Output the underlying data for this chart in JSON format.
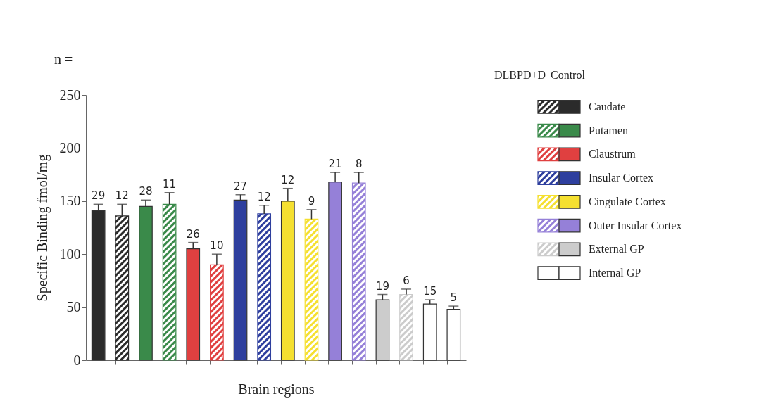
{
  "chart_data": {
    "type": "bar",
    "xlabel": "Brain regions",
    "ylabel": "Specific Binding fmol/mg",
    "categories": [
      null,
      null,
      null,
      null,
      null,
      null,
      null,
      null,
      null,
      null,
      null,
      null,
      null,
      null,
      null,
      null
    ],
    "series": [
      {
        "name": "Caudate",
        "color": "#2b2b2b",
        "values": [
          141,
          136,
          null,
          null,
          null,
          null,
          null,
          null,
          null,
          null,
          null,
          null,
          null,
          null,
          null,
          null
        ],
        "errors": [
          [
            141,
            147
          ],
          [
            136,
            147
          ],
          null,
          null,
          null,
          null,
          null,
          null,
          null,
          null,
          null,
          null,
          null,
          null,
          null,
          null
        ]
      },
      {
        "name": "Putamen",
        "color": "#3a8a4a",
        "values": [
          null,
          null,
          145,
          147,
          null,
          null,
          null,
          null,
          null,
          null,
          null,
          null,
          null,
          null,
          null,
          null
        ],
        "errors": [
          null,
          null,
          [
            145,
            151
          ],
          [
            147,
            158
          ],
          null,
          null,
          null,
          null,
          null,
          null,
          null,
          null,
          null,
          null,
          null,
          null
        ]
      },
      {
        "name": "Claustrum",
        "color": "#e04040",
        "values": [
          null,
          null,
          null,
          null,
          105,
          90,
          null,
          null,
          null,
          null,
          null,
          null,
          null,
          null,
          null,
          null
        ],
        "errors": [
          null,
          null,
          null,
          null,
          [
            105,
            111
          ],
          [
            90,
            100
          ],
          null,
          null,
          null,
          null,
          null,
          null,
          null,
          null,
          null,
          null
        ]
      },
      {
        "name": "Insular Cortex",
        "color": "#2e3f9e",
        "values": [
          null,
          null,
          null,
          null,
          null,
          null,
          151,
          138,
          null,
          null,
          null,
          null,
          null,
          null,
          null,
          null
        ],
        "errors": [
          null,
          null,
          null,
          null,
          null,
          null,
          [
            151,
            156
          ],
          [
            138,
            146
          ],
          null,
          null,
          null,
          null,
          null,
          null,
          null,
          null
        ]
      },
      {
        "name": "Cingulate Cortex",
        "color": "#f5e030",
        "values": [
          null,
          null,
          null,
          null,
          null,
          null,
          null,
          null,
          150,
          133,
          null,
          null,
          null,
          null,
          null,
          null
        ],
        "errors": [
          null,
          null,
          null,
          null,
          null,
          null,
          null,
          null,
          [
            150,
            162
          ],
          [
            133,
            142
          ],
          null,
          null,
          null,
          null,
          null,
          null
        ]
      },
      {
        "name": "Outer Insular Cortex",
        "color": "#9580d8",
        "values": [
          null,
          null,
          null,
          null,
          null,
          null,
          null,
          null,
          null,
          null,
          168,
          167,
          null,
          null,
          null,
          null
        ],
        "errors": [
          null,
          null,
          null,
          null,
          null,
          null,
          null,
          null,
          null,
          null,
          [
            168,
            177
          ],
          [
            167,
            177
          ],
          null,
          null,
          null,
          null
        ]
      },
      {
        "name": "External GP",
        "color": "#cccccc",
        "values": [
          null,
          null,
          null,
          null,
          null,
          null,
          null,
          null,
          null,
          null,
          null,
          null,
          57,
          62,
          null,
          null
        ],
        "errors": [
          null,
          null,
          null,
          null,
          null,
          null,
          null,
          null,
          null,
          null,
          null,
          null,
          [
            57,
            62
          ],
          [
            62,
            67
          ],
          null,
          null
        ]
      },
      {
        "name": "Internal GP",
        "color": "#ffffff",
        "values": [
          null,
          null,
          null,
          null,
          null,
          null,
          null,
          null,
          null,
          null,
          null,
          null,
          null,
          null,
          53,
          48
        ],
        "errors": [
          null,
          null,
          null,
          null,
          null,
          null,
          null,
          null,
          null,
          null,
          null,
          null,
          null,
          null,
          [
            53,
            57
          ],
          [
            48,
            51
          ]
        ]
      }
    ],
    "annotations": [
      "n =",
      "DLBPD+D",
      "Control",
      {
        "text": "29",
        "y": 147
      },
      {
        "text": "12",
        "y": 147
      },
      {
        "text": "28",
        "y": 151
      },
      {
        "text": "11",
        "y": 158
      },
      {
        "text": "26",
        "y": 111
      },
      {
        "text": "10",
        "y": 100
      },
      {
        "text": "27",
        "y": 156
      },
      {
        "text": "12",
        "y": 146
      },
      {
        "text": "12",
        "y": 162
      },
      {
        "text": "9",
        "y": 142
      },
      {
        "text": "21",
        "y": 177
      },
      {
        "text": "8",
        "y": 177
      },
      {
        "text": "19",
        "y": 62
      },
      {
        "text": "6",
        "y": 67
      },
      {
        "text": "15",
        "y": 57
      },
      {
        "text": "5",
        "y": 51
      }
    ],
    "ylim": [
      0,
      250
    ],
    "yticks": [
      0,
      50,
      100,
      150,
      200,
      250
    ],
    "grid": false,
    "legend": "right",
    "tick_labels": "y"
  }
}
